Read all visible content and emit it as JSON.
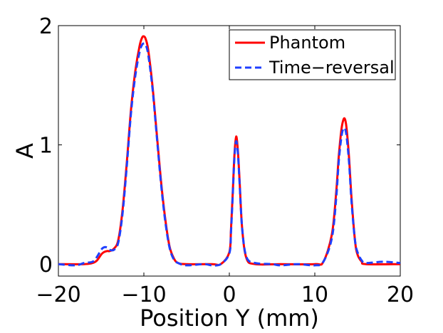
{
  "chart_data": {
    "type": "line",
    "title": "",
    "xlabel": "Position Y (mm)",
    "ylabel": "A",
    "xlim": [
      -20,
      20
    ],
    "ylim": [
      -0.1,
      2.0
    ],
    "xticks": [
      -20,
      -10,
      0,
      10,
      20
    ],
    "xtick_labels": [
      "−20",
      "−10",
      "0",
      "10",
      "20"
    ],
    "yticks": [
      0,
      1,
      2
    ],
    "ytick_labels": [
      "0",
      "1",
      "2"
    ],
    "grid": false,
    "legend_position": "top-right",
    "series": [
      {
        "name": "Phantom",
        "color": "#ff0000",
        "style": "solid",
        "x": [
          -20,
          -17,
          -16,
          -15.5,
          -15,
          -14.7,
          -14.3,
          -14,
          -13.5,
          -13,
          -12.5,
          -12,
          -11.5,
          -11,
          -10.5,
          -10.2,
          -10,
          -9.8,
          -9.5,
          -9,
          -8.5,
          -8,
          -7.5,
          -7,
          -6.5,
          -6,
          -5,
          -2,
          -1,
          0,
          0.2,
          0.4,
          0.6,
          0.8,
          1,
          1.2,
          1.5,
          2,
          3,
          6,
          10,
          11,
          12,
          12.5,
          12.8,
          13.1,
          13.3,
          13.5,
          13.7,
          14,
          14.3,
          14.7,
          15,
          15.5,
          16,
          20
        ],
        "y": [
          0,
          0,
          0.01,
          0.03,
          0.08,
          0.1,
          0.11,
          0.11,
          0.13,
          0.2,
          0.45,
          0.85,
          1.3,
          1.62,
          1.83,
          1.9,
          1.91,
          1.89,
          1.8,
          1.5,
          1.1,
          0.7,
          0.38,
          0.15,
          0.05,
          0.01,
          0,
          0,
          0,
          0.1,
          0.3,
          0.6,
          0.92,
          1.07,
          0.95,
          0.7,
          0.3,
          0.05,
          0,
          0,
          0,
          0.02,
          0.25,
          0.6,
          0.9,
          1.12,
          1.2,
          1.22,
          1.15,
          0.9,
          0.55,
          0.2,
          0.08,
          0.02,
          0,
          0
        ]
      },
      {
        "name": "Time−reversal",
        "color": "#1f3fff",
        "style": "dashed",
        "x": [
          -20,
          -18,
          -17,
          -16,
          -15.5,
          -15,
          -14.7,
          -14.3,
          -14,
          -13.5,
          -13,
          -12.5,
          -12,
          -11.5,
          -11,
          -10.5,
          -10.2,
          -10,
          -9.8,
          -9.5,
          -9,
          -8.5,
          -8,
          -7.5,
          -7,
          -6.5,
          -6,
          -5,
          -3,
          -2,
          -1,
          0,
          0.2,
          0.4,
          0.6,
          0.8,
          1,
          1.2,
          1.5,
          2,
          3,
          5,
          6,
          8,
          10,
          11,
          12,
          12.5,
          12.8,
          13.1,
          13.3,
          13.5,
          13.7,
          14,
          14.3,
          14.7,
          15,
          15.5,
          16,
          18,
          20
        ],
        "y": [
          0,
          -0.01,
          0.01,
          0.02,
          0.06,
          0.12,
          0.14,
          0.14,
          0.12,
          0.12,
          0.18,
          0.42,
          0.82,
          1.27,
          1.58,
          1.78,
          1.84,
          1.85,
          1.84,
          1.76,
          1.48,
          1.08,
          0.68,
          0.36,
          0.14,
          0.04,
          0.01,
          -0.01,
          0,
          -0.01,
          0,
          0.09,
          0.28,
          0.58,
          0.9,
          1.03,
          0.93,
          0.68,
          0.3,
          0.06,
          0.01,
          0,
          -0.01,
          0,
          -0.01,
          0.02,
          0.22,
          0.55,
          0.86,
          1.06,
          1.13,
          1.14,
          1.08,
          0.86,
          0.52,
          0.2,
          0.1,
          0.03,
          0.01,
          0.02,
          0.01
        ]
      }
    ]
  }
}
